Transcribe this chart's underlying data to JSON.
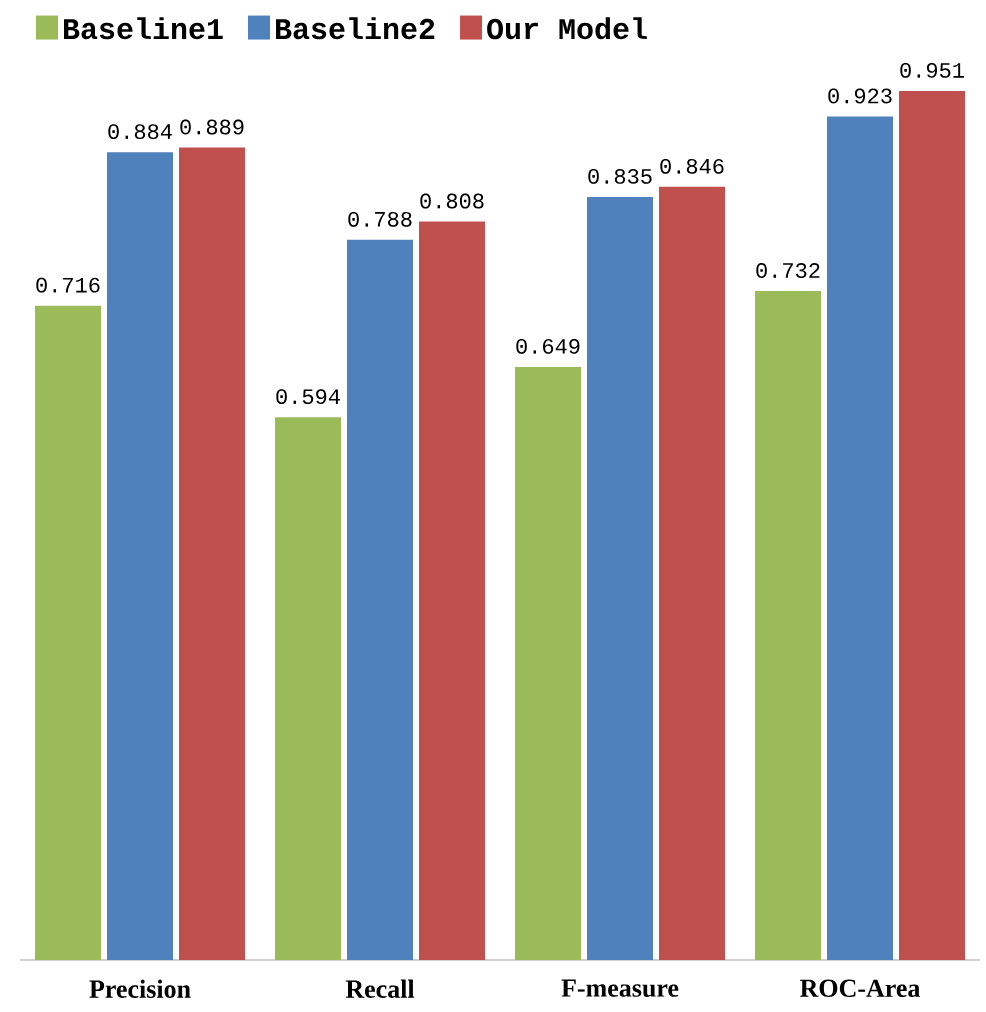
{
  "chart_data": {
    "type": "bar",
    "categories": [
      "Precision",
      "Recall",
      "F-measure",
      "ROC-Area"
    ],
    "series": [
      {
        "name": "Baseline1",
        "color": "#9bbb59",
        "values": [
          0.716,
          0.594,
          0.649,
          0.732
        ]
      },
      {
        "name": "Baseline2",
        "color": "#4f81bd",
        "values": [
          0.884,
          0.788,
          0.835,
          0.923
        ]
      },
      {
        "name": "Our Model",
        "color": "#c0504d",
        "values": [
          0.889,
          0.808,
          0.846,
          0.951
        ]
      }
    ],
    "data_labels": true,
    "legend": "top left"
  }
}
